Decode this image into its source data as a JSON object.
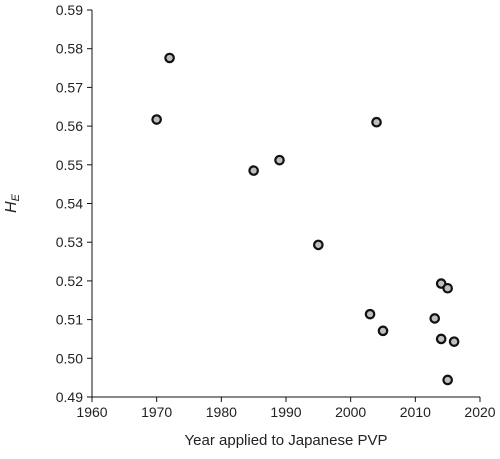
{
  "chart_data": {
    "type": "scatter",
    "title": "",
    "xlabel": "Year applied to Japanese PVP",
    "ylabel": {
      "main": "H",
      "sub": "E"
    },
    "xlim": [
      1960,
      2020
    ],
    "ylim": [
      0.49,
      0.59
    ],
    "x_ticks": [
      1960,
      1970,
      1980,
      1990,
      2000,
      2010,
      2020
    ],
    "x_tick_labels": [
      "1960",
      "1970",
      "1980",
      "1990",
      "2000",
      "2010",
      "2020"
    ],
    "y_ticks": [
      0.49,
      0.5,
      0.51,
      0.52,
      0.53,
      0.54,
      0.55,
      0.56,
      0.57,
      0.58,
      0.59
    ],
    "y_tick_labels": [
      "0.49",
      "0.50",
      "0.51",
      "0.52",
      "0.53",
      "0.54",
      "0.55",
      "0.56",
      "0.57",
      "0.58",
      "0.59"
    ],
    "grid": false,
    "legend": "none",
    "marker": {
      "face": "#bfbfbf",
      "edge": "#111111"
    },
    "points": [
      {
        "x": 1970,
        "y": 0.5617
      },
      {
        "x": 1972,
        "y": 0.5776
      },
      {
        "x": 1985,
        "y": 0.5485
      },
      {
        "x": 1989,
        "y": 0.5512
      },
      {
        "x": 1995,
        "y": 0.5293
      },
      {
        "x": 2003,
        "y": 0.5114
      },
      {
        "x": 2004,
        "y": 0.561
      },
      {
        "x": 2005,
        "y": 0.5071
      },
      {
        "x": 2013,
        "y": 0.5103
      },
      {
        "x": 2014,
        "y": 0.5193
      },
      {
        "x": 2014,
        "y": 0.505
      },
      {
        "x": 2015,
        "y": 0.5181
      },
      {
        "x": 2015,
        "y": 0.4944
      },
      {
        "x": 2016,
        "y": 0.5043
      }
    ]
  }
}
